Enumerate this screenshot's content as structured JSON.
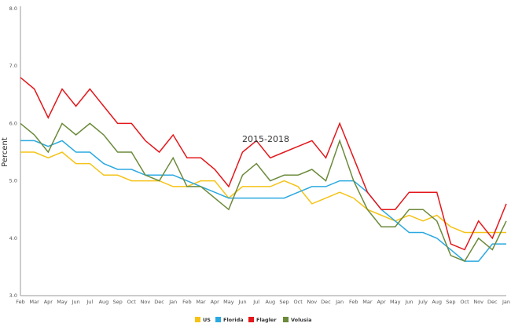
{
  "chart_data": {
    "type": "line",
    "xlabel": "2015-2018",
    "ylabel": "Percent",
    "ylim": [
      3.0,
      8.0
    ],
    "yticks": [
      "3.0",
      "4.0",
      "5.0",
      "6.0",
      "7.0",
      "8.0"
    ],
    "grid": false,
    "legend": "bottom",
    "categories": [
      "Feb",
      "Mar",
      "Apr",
      "May",
      "Jun",
      "Jul",
      "Aug",
      "Sep",
      "Oct",
      "Nov",
      "Dec",
      "Jan",
      "Feb",
      "Mar",
      "Apr",
      "May",
      "Jun",
      "Jul",
      "Aug",
      "Sep",
      "Oct",
      "Nov",
      "Dec",
      "Jan",
      "Feb",
      "Mar",
      "Apr",
      "May",
      "Jun",
      "July",
      "Aug",
      "Sep",
      "Oct",
      "Nov",
      "Dec",
      "Jan"
    ],
    "series": [
      {
        "name": "US",
        "color": "#f5c316",
        "values": [
          5.5,
          5.5,
          5.4,
          5.5,
          5.3,
          5.3,
          5.1,
          5.1,
          5.0,
          5.0,
          5.0,
          4.9,
          4.9,
          5.0,
          5.0,
          4.7,
          4.9,
          4.9,
          4.9,
          5.0,
          4.9,
          4.6,
          4.7,
          4.8,
          4.7,
          4.5,
          4.4,
          4.3,
          4.4,
          4.3,
          4.4,
          4.2,
          4.1,
          4.1,
          4.1,
          4.1
        ]
      },
      {
        "name": "Florida",
        "color": "#2aa9e0",
        "values": [
          5.7,
          5.7,
          5.6,
          5.7,
          5.5,
          5.5,
          5.3,
          5.2,
          5.2,
          5.1,
          5.1,
          5.1,
          5.0,
          4.9,
          4.8,
          4.7,
          4.7,
          4.7,
          4.7,
          4.7,
          4.8,
          4.9,
          4.9,
          5.0,
          5.0,
          4.8,
          4.5,
          4.3,
          4.1,
          4.1,
          4.0,
          3.8,
          3.6,
          3.6,
          3.9,
          3.9
        ]
      },
      {
        "name": "Flagler",
        "color": "#e3171b",
        "values": [
          6.8,
          6.6,
          6.1,
          6.6,
          6.3,
          6.6,
          6.3,
          6.0,
          6.0,
          5.7,
          5.5,
          5.8,
          5.4,
          5.4,
          5.2,
          4.9,
          5.5,
          5.7,
          5.4,
          5.5,
          5.6,
          5.7,
          5.4,
          6.0,
          5.4,
          4.8,
          4.5,
          4.5,
          4.8,
          4.8,
          4.8,
          3.9,
          3.8,
          4.3,
          4.0,
          4.6
        ]
      },
      {
        "name": "Volusia",
        "color": "#6b8a3a",
        "values": [
          6.0,
          5.8,
          5.5,
          6.0,
          5.8,
          6.0,
          5.8,
          5.5,
          5.5,
          5.1,
          5.0,
          5.4,
          4.9,
          4.9,
          4.7,
          4.5,
          5.1,
          5.3,
          5.0,
          5.1,
          5.1,
          5.2,
          5.0,
          5.7,
          5.0,
          4.5,
          4.2,
          4.2,
          4.5,
          4.5,
          4.3,
          3.7,
          3.6,
          4.0,
          3.8,
          4.3
        ]
      }
    ]
  }
}
